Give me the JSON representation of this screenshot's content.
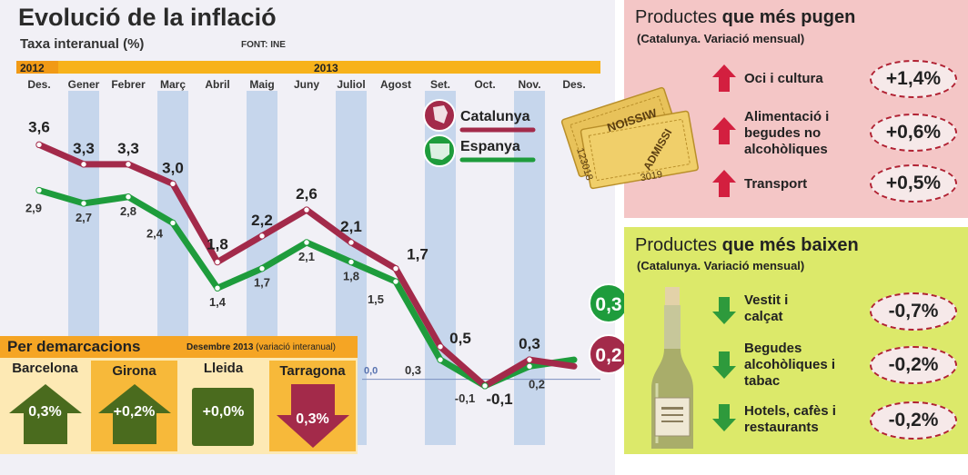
{
  "header": {
    "title": "Evolució de la inflació",
    "subtitle": "Taxa interanual (%)",
    "source": "FONT: INE"
  },
  "chart_data": {
    "type": "line",
    "title": "Evolució de la inflació",
    "ylabel": "Taxa interanual (%)",
    "year_labels": [
      "2012",
      "2013"
    ],
    "categories": [
      "Des.",
      "Gener",
      "Febrer",
      "Març",
      "Abril",
      "Maig",
      "Juny",
      "Juliol",
      "Agost",
      "Set.",
      "Oct.",
      "Nov.",
      "Des."
    ],
    "series": [
      {
        "name": "Catalunya",
        "color": "#a32a4a",
        "values": [
          3.6,
          3.3,
          3.3,
          3.0,
          1.8,
          2.2,
          2.6,
          2.1,
          1.7,
          0.5,
          -0.1,
          0.3,
          0.2
        ],
        "labels": [
          "3,6",
          "3,3",
          "3,3",
          "3,0",
          "1,8",
          "2,2",
          "2,6",
          "2,1",
          "1,7",
          "0,5",
          "-0,1",
          "0,3",
          "0,2"
        ]
      },
      {
        "name": "Espanya",
        "color": "#1e9c3c",
        "values": [
          2.9,
          2.7,
          2.8,
          2.4,
          1.4,
          1.7,
          2.1,
          1.8,
          1.5,
          0.3,
          -0.1,
          0.2,
          0.3
        ],
        "labels": [
          "2,9",
          "2,7",
          "2,8",
          "2,4",
          "1,4",
          "1,7",
          "2,1",
          "1,8",
          "1,5",
          "0,3",
          "-0,1",
          "0,2",
          "0,3"
        ]
      }
    ],
    "zero_label": "0,0",
    "ylim": [
      -0.2,
      3.8
    ],
    "grid": false,
    "legend": "top-right"
  },
  "demarcacions": {
    "title": "Per demarcacions",
    "note_bold": "Desembre 2013",
    "note": "(variació interanual)",
    "items": [
      {
        "name": "Barcelona",
        "value": "0,3%",
        "direction": "up",
        "color": "#4a6b1e"
      },
      {
        "name": "Girona",
        "value": "+0,2%",
        "direction": "up",
        "color": "#4a6b1e"
      },
      {
        "name": "Lleida",
        "value": "+0,0%",
        "direction": "flat",
        "color": "#4a6b1e"
      },
      {
        "name": "Tarragona",
        "value": "0,3%",
        "direction": "down",
        "color": "#a32a4a"
      }
    ]
  },
  "rising": {
    "title_plain": "Productes ",
    "title_bold": "que més pugen",
    "subtitle": "(Catalunya. Variació mensual)",
    "items": [
      {
        "label": "Oci i cultura",
        "value": "+1,4%"
      },
      {
        "label": "Alimentació i begudes no alcohòliques",
        "value": "+0,6%"
      },
      {
        "label": "Transport",
        "value": "+0,5%"
      }
    ]
  },
  "falling": {
    "title_plain": "Productes ",
    "title_bold": "que més baixen",
    "subtitle": "(Catalunya. Variació mensual)",
    "items": [
      {
        "label": "Vestit i calçat",
        "value": "-0,7%"
      },
      {
        "label": "Begudes alcohòliques i tabac",
        "value": "-0,2%"
      },
      {
        "label": "Hotels, cafès i restaurants",
        "value": "-0,2%"
      }
    ]
  },
  "tickets": {
    "text_a": "NOISSIW",
    "text_b": "ADMISSI",
    "num_a": "123018",
    "num_b": "3019"
  },
  "colors": {
    "chart_bg": "#f1f0f6",
    "stripe": "#b7cde8",
    "year_bar": "#f7b21b",
    "rising_bg": "#f4c6c6",
    "falling_bg": "#dce96a",
    "up_arrow": "#d31f3f",
    "down_arrow": "#2e9a3c",
    "dem_bg": "#fde9b4"
  }
}
